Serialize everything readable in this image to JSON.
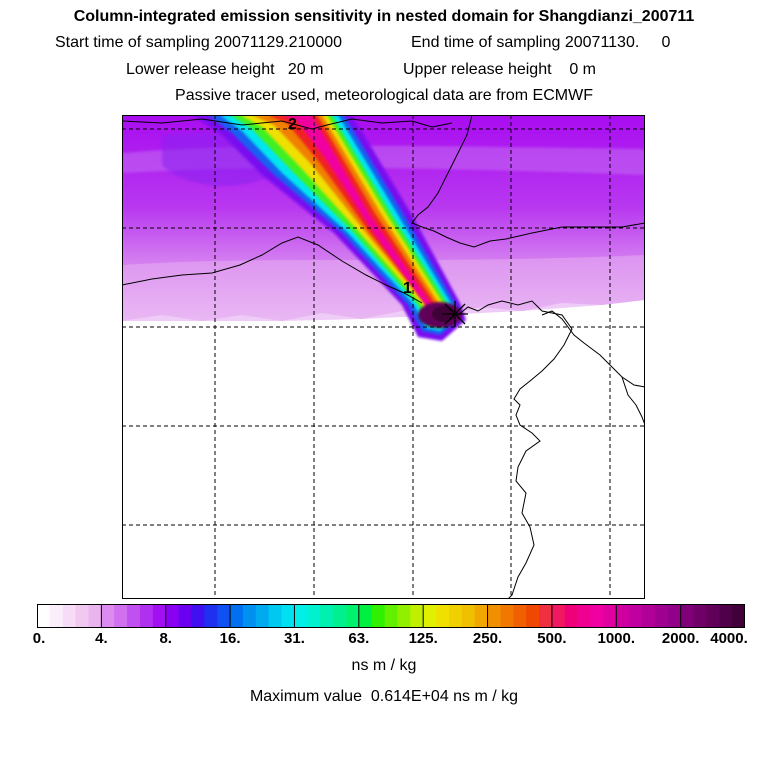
{
  "title": "Column-integrated emission sensitivity in nested domain for Shangdianzi_200711",
  "start_time": "Start time of sampling 20071129.210000",
  "end_time": "End time of sampling 20071130.     0",
  "lower_release": "Lower release height   20 m",
  "upper_release": "Upper release height    0 m",
  "tracer_info": "Passive tracer used, meteorological data are from ECMWF",
  "map_labels": [
    "2",
    "1"
  ],
  "colorbar": {
    "ticks": [
      "0.",
      "4.",
      "8.",
      "16.",
      "31.",
      "63.",
      "125.",
      "250.",
      "500.",
      "1000.",
      "2000.",
      "4000."
    ],
    "colors": [
      [
        "#ffffff",
        "#fbeefb",
        "#f6dcf6",
        "#f0c8f0",
        "#eab4ee"
      ],
      [
        "#dc8cf0",
        "#d070f0",
        "#c050f0",
        "#b030f0",
        "#a010f0"
      ],
      [
        "#8a00f0",
        "#6a00f0",
        "#4010f0",
        "#2030f0",
        "#1050f0"
      ],
      [
        "#0070f0",
        "#0090f0",
        "#00aaf0",
        "#00c8f0",
        "#00e0f0"
      ],
      [
        "#00f0e8",
        "#00f0d0",
        "#00f0b0",
        "#00f090",
        "#00f070"
      ],
      [
        "#00f040",
        "#30f000",
        "#60f000",
        "#90f000",
        "#c0f000"
      ],
      [
        "#e0f000",
        "#f0e000",
        "#f0d000",
        "#f0c000",
        "#f0a800"
      ],
      [
        "#f09000",
        "#f07800",
        "#f06000",
        "#f04800",
        "#f03040"
      ],
      [
        "#f01860",
        "#f00078",
        "#f00090",
        "#f000a0",
        "#e000a0"
      ],
      [
        "#d000a0",
        "#c000a0",
        "#b00098",
        "#a00090",
        "#900088"
      ],
      [
        "#800078",
        "#700068",
        "#600058",
        "#500048",
        "#400038"
      ]
    ]
  },
  "units": "ns m / kg",
  "max_value": "Maximum value  0.614E+04 ns m / kg"
}
